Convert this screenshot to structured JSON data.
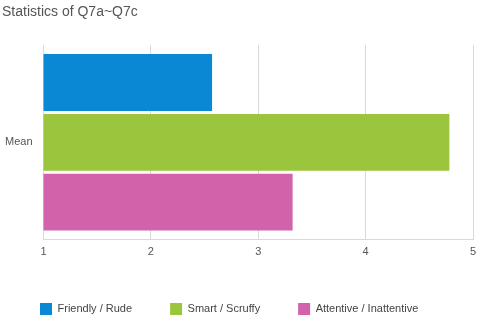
{
  "chart_data": {
    "type": "bar",
    "title": "Statistics of Q7a~Q7c",
    "categories": [
      "Mean"
    ],
    "series": [
      {
        "name": "Friendly / Rude",
        "color": "#0b88d3",
        "values": [
          2.57
        ]
      },
      {
        "name": "Smart / Scruffy",
        "color": "#9bc53d",
        "values": [
          4.78
        ]
      },
      {
        "name": "Attentive / Inattentive",
        "color": "#d063a9",
        "values": [
          3.32
        ]
      }
    ],
    "xlim": [
      1,
      5
    ],
    "xticks": [
      1,
      2,
      3,
      4,
      5
    ],
    "orientation": "horizontal",
    "grid": true,
    "legend": "bottom"
  }
}
